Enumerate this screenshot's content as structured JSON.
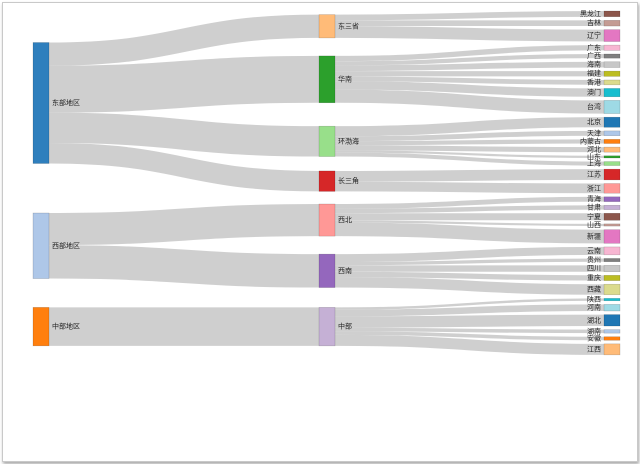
{
  "chart_data": {
    "type": "sankey",
    "title": "",
    "level0": [
      {
        "name": "东部地区",
        "color": "#2f7fbd"
      },
      {
        "name": "西部地区",
        "color": "#aec7e8"
      },
      {
        "name": "中部地区",
        "color": "#ff7f0e"
      }
    ],
    "level1": [
      {
        "name": "东三省",
        "color": "#ffbb78",
        "parent": 0
      },
      {
        "name": "华南",
        "color": "#2ca02c",
        "parent": 0
      },
      {
        "name": "环渤海",
        "color": "#98df8a",
        "parent": 0
      },
      {
        "name": "长三角",
        "color": "#d62728",
        "parent": 0
      },
      {
        "name": "西北",
        "color": "#ff9896",
        "parent": 1
      },
      {
        "name": "西南",
        "color": "#9467bd",
        "parent": 1
      },
      {
        "name": "中部",
        "color": "#c5b0d5",
        "parent": 2
      }
    ],
    "level2": [
      {
        "name": "黑龙江",
        "color": "#8c564b",
        "parent": 0,
        "value": 2.6
      },
      {
        "name": "吉林",
        "color": "#c49c94",
        "parent": 0,
        "value": 2.6
      },
      {
        "name": "辽宁",
        "color": "#e377c2",
        "parent": 0,
        "value": 5.4
      },
      {
        "name": "广东",
        "color": "#f7b6d2",
        "parent": 1,
        "value": 2.4
      },
      {
        "name": "广西",
        "color": "#7f7f7f",
        "parent": 1,
        "value": 1.9
      },
      {
        "name": "海南",
        "color": "#c7c7c7",
        "parent": 1,
        "value": 2.6
      },
      {
        "name": "福建",
        "color": "#bcbd22",
        "parent": 1,
        "value": 2.4
      },
      {
        "name": "香港",
        "color": "#dbdb8d",
        "parent": 1,
        "value": 2.2
      },
      {
        "name": "澳门",
        "color": "#17becf",
        "parent": 1,
        "value": 3.8
      },
      {
        "name": "台湾",
        "color": "#9edae5",
        "parent": 1,
        "value": 6.0
      },
      {
        "name": "北京",
        "color": "#1f77b4",
        "parent": 2,
        "value": 4.6
      },
      {
        "name": "天津",
        "color": "#aec7e8",
        "parent": 2,
        "value": 2.2
      },
      {
        "name": "内蒙古",
        "color": "#ff7f0e",
        "parent": 2,
        "value": 1.9
      },
      {
        "name": "河北",
        "color": "#ffbb78",
        "parent": 2,
        "value": 2.3
      },
      {
        "name": "山东",
        "color": "#2ca02c",
        "parent": 2,
        "value": 1.0
      },
      {
        "name": "上海",
        "color": "#98df8a",
        "parent": 2,
        "value": 1.8
      },
      {
        "name": "江苏",
        "color": "#d62728",
        "parent": 3,
        "value": 4.9
      },
      {
        "name": "浙江",
        "color": "#ff9896",
        "parent": 3,
        "value": 4.4
      },
      {
        "name": "青海",
        "color": "#9467bd",
        "parent": 4,
        "value": 2.2
      },
      {
        "name": "甘肃",
        "color": "#c5b0d5",
        "parent": 4,
        "value": 2.0
      },
      {
        "name": "宁夏",
        "color": "#8c564b",
        "parent": 4,
        "value": 3.2
      },
      {
        "name": "山西",
        "color": "#c49c94",
        "parent": 4,
        "value": 1.0
      },
      {
        "name": "新疆",
        "color": "#e377c2",
        "parent": 4,
        "value": 6.2
      },
      {
        "name": "云南",
        "color": "#f7b6d2",
        "parent": 5,
        "value": 3.6
      },
      {
        "name": "贵州",
        "color": "#7f7f7f",
        "parent": 5,
        "value": 1.5
      },
      {
        "name": "四川",
        "color": "#c7c7c7",
        "parent": 5,
        "value": 2.9
      },
      {
        "name": "重庆",
        "color": "#bcbd22",
        "parent": 5,
        "value": 2.4
      },
      {
        "name": "西藏",
        "color": "#dbdb8d",
        "parent": 5,
        "value": 4.8
      },
      {
        "name": "陕西",
        "color": "#17becf",
        "parent": 6,
        "value": 1.1
      },
      {
        "name": "河南",
        "color": "#9edae5",
        "parent": 6,
        "value": 3.0
      },
      {
        "name": "湖北",
        "color": "#1f77b4",
        "parent": 6,
        "value": 5.2
      },
      {
        "name": "湖南",
        "color": "#aec7e8",
        "parent": 6,
        "value": 1.6
      },
      {
        "name": "安徽",
        "color": "#ff7f0e",
        "parent": 6,
        "value": 1.6
      },
      {
        "name": "江西",
        "color": "#ffbb78",
        "parent": 6,
        "value": 5.0
      }
    ]
  }
}
